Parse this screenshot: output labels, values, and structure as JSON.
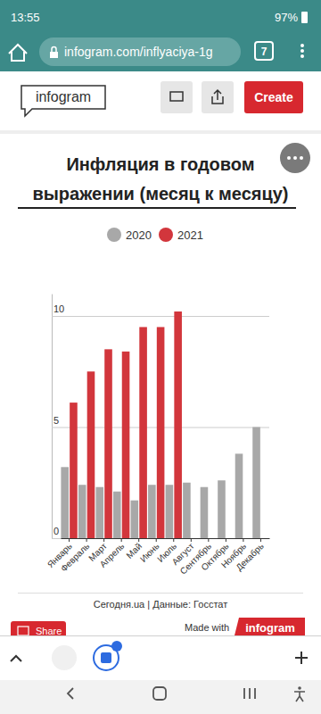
{
  "page": {
    "status_bar": {
      "time": "13:55",
      "battery": "97%"
    },
    "browser": {
      "url": "infogram.com/inflyaciya-1g",
      "tabs": "7"
    },
    "header": {
      "logo": "infogram",
      "button": "Create"
    },
    "footer": {
      "share": "Share",
      "made_with": "Made with",
      "brand": "infogram"
    }
  },
  "chart_data": {
    "type": "bar",
    "title": "Инфляция в годовом выражении (месяц к месяцу)",
    "source": "Сегодня.ua | Данные: Госстат",
    "categories": [
      "Январь",
      "Февраль",
      "Март",
      "Апрель",
      "Май",
      "Июнь",
      "Июль",
      "Август",
      "Сентябрь",
      "Октябрь",
      "Ноябрь",
      "Декабрь"
    ],
    "series": [
      {
        "name": "2020",
        "color": "#a8a8a8",
        "values": [
          3.2,
          2.4,
          2.3,
          2.1,
          1.7,
          2.4,
          2.4,
          2.5,
          2.3,
          2.6,
          3.8,
          5.0
        ]
      },
      {
        "name": "2021",
        "color": "#d2363c",
        "values": [
          6.1,
          7.5,
          8.5,
          8.4,
          9.5,
          9.5,
          10.2,
          null,
          null,
          null,
          null,
          null
        ]
      }
    ],
    "ylim": [
      0,
      11
    ],
    "yticks": [
      0,
      5,
      10
    ],
    "grid": true,
    "legend": "top"
  }
}
